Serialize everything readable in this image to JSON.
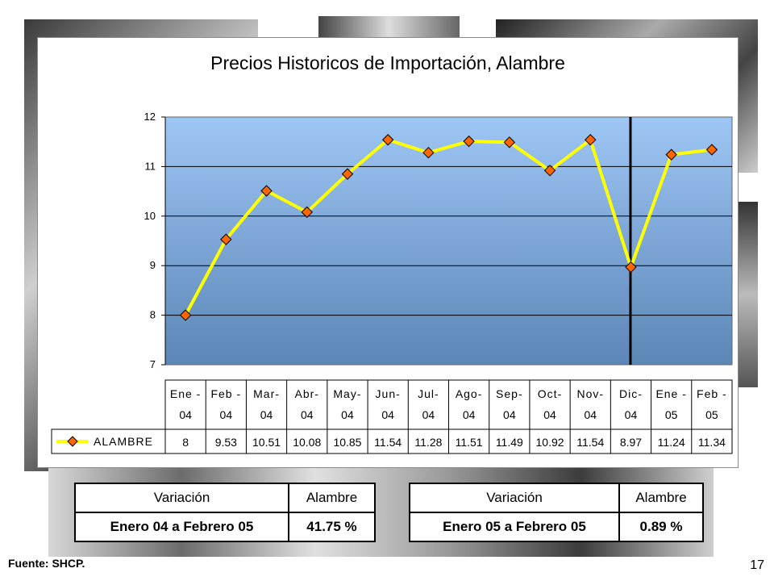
{
  "chart_data": {
    "type": "line",
    "title": "Precios Historicos de Importación, Alambre",
    "categories": [
      "Ene-04",
      "Feb-04",
      "Mar-04",
      "Abr-04",
      "May-04",
      "Jun-04",
      "Jul-04",
      "Ago-04",
      "Sep-04",
      "Oct-04",
      "Nov-04",
      "Dic-04",
      "Ene-05",
      "Feb-05"
    ],
    "category_lines": [
      [
        "Ene -",
        "04"
      ],
      [
        "Feb -",
        "04"
      ],
      [
        "Mar-",
        "04"
      ],
      [
        "Abr-",
        "04"
      ],
      [
        "May-",
        "04"
      ],
      [
        "Jun-",
        "04"
      ],
      [
        "Jul-",
        "04"
      ],
      [
        "Ago-",
        "04"
      ],
      [
        "Sep-",
        "04"
      ],
      [
        "Oct-",
        "04"
      ],
      [
        "Nov-",
        "04"
      ],
      [
        "Dic-",
        "04"
      ],
      [
        "Ene -",
        "05"
      ],
      [
        "Feb -",
        "05"
      ]
    ],
    "series": [
      {
        "name": "ALAMBRE",
        "values": [
          8,
          9.53,
          10.51,
          10.08,
          10.85,
          11.54,
          11.28,
          11.51,
          11.49,
          10.92,
          11.54,
          8.97,
          11.24,
          11.34
        ],
        "labels": [
          "8",
          "9.53",
          "10.51",
          "10.08",
          "10.85",
          "11.54",
          "11.28",
          "11.51",
          "11.49",
          "10.92",
          "11.54",
          "8.97",
          "11.24",
          "11.34"
        ],
        "line_color": "#ffff00",
        "marker_color": "#ff6600"
      }
    ],
    "ylim": [
      7,
      12
    ],
    "yticks": [
      "7",
      "8",
      "9",
      "10",
      "11",
      "12"
    ],
    "grid": true,
    "divider_after_category": "Nov-04",
    "data_table": true,
    "plot_gradient": [
      "#9ec6f5",
      "#5b86b6"
    ]
  },
  "tables": [
    {
      "headers": [
        "Variación",
        "Alambre"
      ],
      "row": [
        "Enero 04 a Febrero 05",
        "41.75 %"
      ]
    },
    {
      "headers": [
        "Variación",
        "Alambre"
      ],
      "row": [
        "Enero 05 a Febrero 05",
        "0.89 %"
      ]
    }
  ],
  "footer": {
    "source": "Fuente: SHCP.",
    "page_number": "17"
  }
}
